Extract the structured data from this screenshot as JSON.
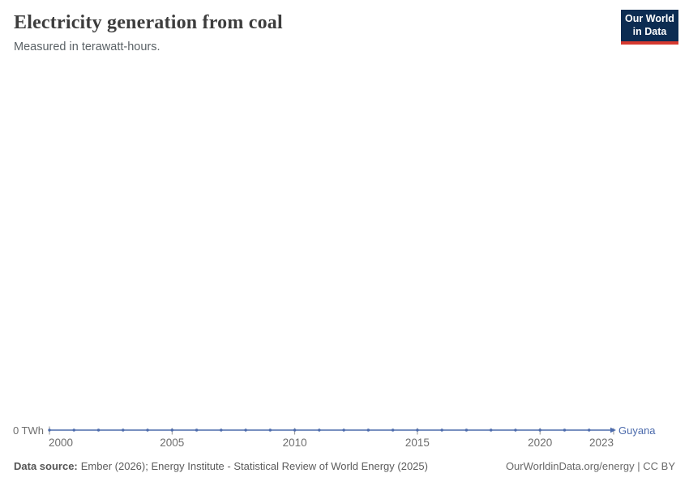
{
  "header": {
    "title": "Electricity generation from coal",
    "subtitle": "Measured in terawatt-hours.",
    "logo": {
      "line1": "Our World",
      "line2": "in Data"
    }
  },
  "chart_data": {
    "type": "line",
    "title": "Electricity generation from coal",
    "subtitle": "Measured in terawatt-hours.",
    "unit": "TWh",
    "x": [
      2000,
      2001,
      2002,
      2003,
      2004,
      2005,
      2006,
      2007,
      2008,
      2009,
      2010,
      2011,
      2012,
      2013,
      2014,
      2015,
      2016,
      2017,
      2018,
      2019,
      2020,
      2021,
      2022,
      2023
    ],
    "series": [
      {
        "name": "Guyana",
        "color": "#4c6bac",
        "values": [
          0,
          0,
          0,
          0,
          0,
          0,
          0,
          0,
          0,
          0,
          0,
          0,
          0,
          0,
          0,
          0,
          0,
          0,
          0,
          0,
          0,
          0,
          0,
          0
        ]
      }
    ],
    "x_ticks": [
      2000,
      2005,
      2010,
      2015,
      2020,
      2023
    ],
    "y_zero_label": "0 TWh",
    "ylim": [
      0,
      0
    ],
    "xlim": [
      2000,
      2023
    ],
    "grid": false,
    "legend_position": "end-of-line",
    "marker": "point-per-year-with-arrow-end"
  },
  "footer": {
    "source_label": "Data source:",
    "source_text": "Ember (2026); Energy Institute - Statistical Review of World Energy (2025)",
    "rights": "OurWorldinData.org/energy | CC BY"
  },
  "colors": {
    "line": "#4c6bac",
    "logo_background": "#0c2c52",
    "logo_accent_red": "#d6392f",
    "axis_text": "#6e6e6e",
    "axis_tick": "#8f8f8f",
    "title_text": "#3d3d3d",
    "subtitle_text": "#5b6266"
  }
}
